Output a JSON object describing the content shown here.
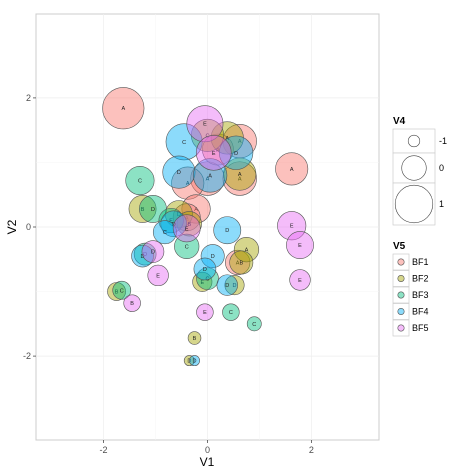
{
  "chart_data": {
    "type": "scatter",
    "xlabel": "V1",
    "ylabel": "V2",
    "xlim": [
      -3.3,
      3.3
    ],
    "ylim": [
      -3.3,
      3.3
    ],
    "x_ticks": [
      -2,
      0,
      2
    ],
    "y_ticks": [
      -2,
      0,
      2
    ],
    "x_tick_labels": [
      "-2",
      "0",
      "2"
    ],
    "y_tick_labels": [
      "-2",
      "0",
      "2"
    ],
    "grid": true,
    "legend_position": "right",
    "size_legend": {
      "title": "V4",
      "items": [
        {
          "label": "-1",
          "value": -1
        },
        {
          "label": "0",
          "value": 0
        },
        {
          "label": "1",
          "value": 1
        }
      ]
    },
    "color_legend": {
      "title": "V5",
      "items": [
        {
          "label": "BF1",
          "color": "#F8766D"
        },
        {
          "label": "BF2",
          "color": "#A3A500"
        },
        {
          "label": "BF3",
          "color": "#00BF7D"
        },
        {
          "label": "BF4",
          "color": "#00B0F6"
        },
        {
          "label": "BF5",
          "color": "#E76BF3"
        }
      ]
    },
    "points": [
      {
        "x": -1.62,
        "y": 1.84,
        "size": 1.3,
        "group": "BF1",
        "label": "A"
      },
      {
        "x": 1.62,
        "y": 0.9,
        "size": 0.6,
        "group": "BF1",
        "label": "A"
      },
      {
        "x": 0.62,
        "y": 1.33,
        "size": 0.7,
        "group": "BF1",
        "label": "A"
      },
      {
        "x": 0.62,
        "y": 0.75,
        "size": 0.7,
        "group": "BF1",
        "label": "A"
      },
      {
        "x": 0.0,
        "y": 0.75,
        "size": 0.7,
        "group": "BF1",
        "label": "A"
      },
      {
        "x": -0.38,
        "y": 0.68,
        "size": 0.6,
        "group": "BF1",
        "label": "A"
      },
      {
        "x": -0.22,
        "y": 0.28,
        "size": 0.3,
        "group": "BF1",
        "label": "A"
      },
      {
        "x": 0.2,
        "y": 1.2,
        "size": 0.5,
        "group": "BF1",
        "label": "A"
      },
      {
        "x": 0.58,
        "y": -0.55,
        "size": 0.0,
        "group": "BF1",
        "label": "A"
      },
      {
        "x": -0.4,
        "y": 0.15,
        "size": 0.2,
        "group": "BF1",
        "label": "A"
      },
      {
        "x": 0.38,
        "y": 1.38,
        "size": 0.6,
        "group": "BF2",
        "label": "A"
      },
      {
        "x": 0.0,
        "y": 1.42,
        "size": 0.6,
        "group": "BF2",
        "label": "C"
      },
      {
        "x": 0.62,
        "y": 0.82,
        "size": 0.6,
        "group": "BF2",
        "label": "A"
      },
      {
        "x": 0.75,
        "y": -0.35,
        "size": 0.0,
        "group": "BF2",
        "label": "A"
      },
      {
        "x": 0.65,
        "y": -0.55,
        "size": -0.1,
        "group": "BF2",
        "label": "B"
      },
      {
        "x": -1.25,
        "y": 0.28,
        "size": 0.2,
        "group": "BF2",
        "label": "B"
      },
      {
        "x": -0.55,
        "y": 0.2,
        "size": 0.2,
        "group": "BF2",
        "label": "D"
      },
      {
        "x": -0.1,
        "y": -0.85,
        "size": -0.4,
        "group": "BF2",
        "label": "E"
      },
      {
        "x": 0.52,
        "y": -0.9,
        "size": -0.4,
        "group": "BF2",
        "label": "D"
      },
      {
        "x": -1.75,
        "y": -1.0,
        "size": -0.5,
        "group": "BF2",
        "label": "B"
      },
      {
        "x": -0.25,
        "y": -1.72,
        "size": -0.9,
        "group": "BF2",
        "label": "B"
      },
      {
        "x": -0.35,
        "y": -2.07,
        "size": -1.1,
        "group": "BF2",
        "label": "D"
      },
      {
        "x": -0.35,
        "y": 0.05,
        "size": 0.0,
        "group": "BF2",
        "label": "B"
      },
      {
        "x": -1.3,
        "y": 0.72,
        "size": 0.3,
        "group": "BF3",
        "label": "C"
      },
      {
        "x": -1.05,
        "y": 0.28,
        "size": 0.2,
        "group": "BF3",
        "label": "D"
      },
      {
        "x": -0.4,
        "y": -0.3,
        "size": 0.0,
        "group": "BF3",
        "label": "C"
      },
      {
        "x": -0.7,
        "y": 0.1,
        "size": 0.0,
        "group": "BF3",
        "label": "E"
      },
      {
        "x": 0.0,
        "y": -0.8,
        "size": -0.2,
        "group": "BF3",
        "label": "C"
      },
      {
        "x": 0.45,
        "y": -1.32,
        "size": -0.6,
        "group": "BF3",
        "label": "C"
      },
      {
        "x": 0.9,
        "y": -1.5,
        "size": -0.8,
        "group": "BF3",
        "label": "C"
      },
      {
        "x": -1.65,
        "y": -0.98,
        "size": -0.5,
        "group": "BF3",
        "label": "C"
      },
      {
        "x": -1.2,
        "y": -0.42,
        "size": -0.2,
        "group": "BF3",
        "label": "D"
      },
      {
        "x": -0.45,
        "y": 1.32,
        "size": 0.9,
        "group": "BF4",
        "label": "C"
      },
      {
        "x": -0.55,
        "y": 0.85,
        "size": 0.6,
        "group": "BF4",
        "label": "D"
      },
      {
        "x": 0.55,
        "y": 1.15,
        "size": 0.7,
        "group": "BF4",
        "label": "D"
      },
      {
        "x": 0.05,
        "y": 0.8,
        "size": 0.7,
        "group": "BF4",
        "label": "A"
      },
      {
        "x": 0.38,
        "y": -0.05,
        "size": 0.2,
        "group": "BF4",
        "label": "D"
      },
      {
        "x": -0.65,
        "y": 0.05,
        "size": 0.1,
        "group": "BF4",
        "label": "D"
      },
      {
        "x": 0.1,
        "y": -0.45,
        "size": -0.1,
        "group": "BF4",
        "label": "D"
      },
      {
        "x": -0.05,
        "y": -0.65,
        "size": -0.2,
        "group": "BF4",
        "label": "D"
      },
      {
        "x": 0.38,
        "y": -0.9,
        "size": -0.3,
        "group": "BF4",
        "label": "D"
      },
      {
        "x": -1.25,
        "y": -0.45,
        "size": -0.2,
        "group": "BF4",
        "label": "D"
      },
      {
        "x": -0.25,
        "y": -2.07,
        "size": -1.1,
        "group": "BF4",
        "label": "D"
      },
      {
        "x": -0.82,
        "y": -0.08,
        "size": -0.1,
        "group": "BF4",
        "label": "C"
      },
      {
        "x": -0.05,
        "y": 1.6,
        "size": 0.9,
        "group": "BF5",
        "label": "E"
      },
      {
        "x": 0.12,
        "y": 1.15,
        "size": 0.8,
        "group": "BF5",
        "label": "E"
      },
      {
        "x": 1.62,
        "y": 0.02,
        "size": 0.3,
        "group": "BF5",
        "label": "E"
      },
      {
        "x": 1.78,
        "y": -0.28,
        "size": 0.2,
        "group": "BF5",
        "label": "E"
      },
      {
        "x": -0.4,
        "y": -0.02,
        "size": 0.2,
        "group": "BF5",
        "label": "E"
      },
      {
        "x": -1.05,
        "y": -0.38,
        "size": -0.2,
        "group": "BF5",
        "label": "D"
      },
      {
        "x": -0.95,
        "y": -0.75,
        "size": -0.3,
        "group": "BF5",
        "label": "E"
      },
      {
        "x": 1.78,
        "y": -0.82,
        "size": -0.3,
        "group": "BF5",
        "label": "E"
      },
      {
        "x": -0.05,
        "y": -1.32,
        "size": -0.6,
        "group": "BF5",
        "label": "E"
      },
      {
        "x": -1.45,
        "y": -1.18,
        "size": -0.6,
        "group": "BF5",
        "label": "B"
      }
    ]
  }
}
